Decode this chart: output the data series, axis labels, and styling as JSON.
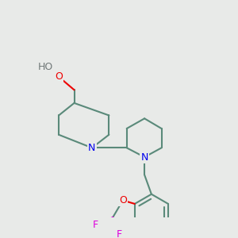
{
  "background_color": "#e8eae8",
  "bond_color": "#5a8a7a",
  "bond_width": 1.5,
  "atom_colors": {
    "N": "#0000ee",
    "O": "#ee0000",
    "F": "#dd00dd",
    "C": "#5a8a7a",
    "H": "#707878"
  },
  "figsize": [
    3.0,
    3.0
  ],
  "dpi": 100
}
